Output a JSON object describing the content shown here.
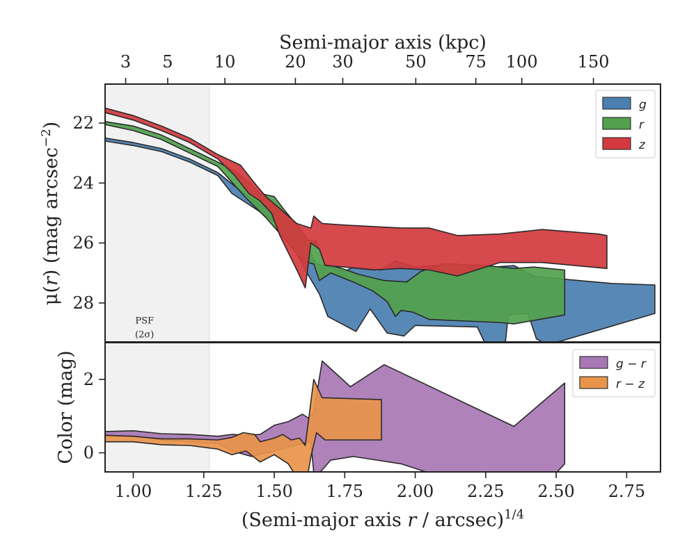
{
  "chart_data": [
    {
      "type": "area",
      "panel": "surface-brightness",
      "top_axis": {
        "label": "Semi-major axis (kpc)",
        "ticks": [
          3,
          5,
          10,
          20,
          30,
          50,
          75,
          100,
          150
        ],
        "tick_positions_x": [
          0.973,
          1.122,
          1.325,
          1.575,
          1.743,
          2.002,
          2.215,
          2.378,
          2.632
        ]
      },
      "xlabel_prefix": "(Semi-major axis ",
      "xlabel_var": "r",
      "xlabel_suffix": " / arcsec)",
      "xlabel_exp": "1/4",
      "ylabel": "μ(r) (mag arcsec⁻²)",
      "ylabel_parts": {
        "mu": "μ",
        "r": "r",
        "rest": ") (mag arcsec",
        "exp": "−2",
        "close": ")"
      },
      "xlim": [
        0.9,
        2.87
      ],
      "ylim": [
        29.3,
        20.7
      ],
      "yticks": [
        22,
        24,
        26,
        28
      ],
      "psf_region": {
        "x0": 0.9,
        "x1": 1.27,
        "label_1": "PSF",
        "label_2": "(2σ)"
      },
      "legend": {
        "position": "top-right"
      },
      "series": [
        {
          "name": "g",
          "color": "#4a7fb0",
          "polygon": [
            [
              0.9,
              22.5
            ],
            [
              1.0,
              22.65
            ],
            [
              1.1,
              22.85
            ],
            [
              1.2,
              23.2
            ],
            [
              1.3,
              23.65
            ],
            [
              1.36,
              24.1
            ],
            [
              1.43,
              24.6
            ],
            [
              1.46,
              24.75
            ],
            [
              1.5,
              24.8
            ],
            [
              1.55,
              25.4
            ],
            [
              1.6,
              25.85
            ],
            [
              1.65,
              26.7
            ],
            [
              1.7,
              26.8
            ],
            [
              1.75,
              26.95
            ],
            [
              1.78,
              26.8
            ],
            [
              1.88,
              26.9
            ],
            [
              1.93,
              26.6
            ],
            [
              2.0,
              26.8
            ],
            [
              2.15,
              26.7
            ],
            [
              2.22,
              26.85
            ],
            [
              2.28,
              26.8
            ],
            [
              2.35,
              26.75
            ],
            [
              2.42,
              27.1
            ],
            [
              2.52,
              27.2
            ],
            [
              2.7,
              27.35
            ],
            [
              2.85,
              27.4
            ],
            [
              2.85,
              28.35
            ],
            [
              2.47,
              29.4
            ],
            [
              2.43,
              29.2
            ],
            [
              2.4,
              28.35
            ],
            [
              2.33,
              28.4
            ],
            [
              2.32,
              29.3
            ],
            [
              2.28,
              29.35
            ],
            [
              2.25,
              29.4
            ],
            [
              2.22,
              28.8
            ],
            [
              2.0,
              28.75
            ],
            [
              1.96,
              29.1
            ],
            [
              1.9,
              29.0
            ],
            [
              1.84,
              28.2
            ],
            [
              1.79,
              28.95
            ],
            [
              1.69,
              28.45
            ],
            [
              1.66,
              27.7
            ],
            [
              1.61,
              26.9
            ],
            [
              1.56,
              26.0
            ],
            [
              1.5,
              25.3
            ],
            [
              1.44,
              24.9
            ],
            [
              1.35,
              24.35
            ],
            [
              1.3,
              23.75
            ],
            [
              1.2,
              23.3
            ],
            [
              1.1,
              22.95
            ],
            [
              1.0,
              22.75
            ],
            [
              0.9,
              22.6
            ]
          ]
        },
        {
          "name": "r",
          "color": "#52a14e",
          "polygon": [
            [
              0.9,
              21.95
            ],
            [
              1.0,
              22.1
            ],
            [
              1.1,
              22.4
            ],
            [
              1.2,
              22.85
            ],
            [
              1.3,
              23.3
            ],
            [
              1.36,
              23.6
            ],
            [
              1.42,
              24.05
            ],
            [
              1.45,
              24.35
            ],
            [
              1.5,
              24.45
            ],
            [
              1.54,
              24.95
            ],
            [
              1.58,
              25.4
            ],
            [
              1.62,
              25.9
            ],
            [
              1.65,
              25.95
            ],
            [
              1.68,
              26.7
            ],
            [
              1.74,
              26.85
            ],
            [
              1.8,
              27.05
            ],
            [
              1.89,
              27.25
            ],
            [
              1.97,
              27.3
            ],
            [
              2.02,
              26.95
            ],
            [
              2.1,
              26.7
            ],
            [
              2.25,
              26.75
            ],
            [
              2.35,
              26.85
            ],
            [
              2.42,
              26.8
            ],
            [
              2.53,
              26.9
            ],
            [
              2.53,
              28.4
            ],
            [
              2.35,
              28.7
            ],
            [
              2.3,
              28.65
            ],
            [
              2.05,
              28.55
            ],
            [
              1.99,
              28.3
            ],
            [
              1.95,
              28.25
            ],
            [
              1.93,
              28.45
            ],
            [
              1.9,
              27.95
            ],
            [
              1.85,
              27.6
            ],
            [
              1.78,
              27.3
            ],
            [
              1.7,
              27.0
            ],
            [
              1.66,
              27.25
            ],
            [
              1.64,
              26.7
            ],
            [
              1.6,
              26.6
            ],
            [
              1.54,
              25.9
            ],
            [
              1.47,
              25.15
            ],
            [
              1.4,
              24.5
            ],
            [
              1.3,
              23.45
            ],
            [
              1.2,
              23.0
            ],
            [
              1.1,
              22.55
            ],
            [
              1.0,
              22.25
            ],
            [
              0.9,
              22.05
            ]
          ]
        },
        {
          "name": "z",
          "color": "#d3393e",
          "polygon": [
            [
              0.9,
              21.5
            ],
            [
              1.0,
              21.75
            ],
            [
              1.1,
              22.1
            ],
            [
              1.2,
              22.5
            ],
            [
              1.3,
              23.05
            ],
            [
              1.38,
              23.4
            ],
            [
              1.43,
              24.0
            ],
            [
              1.47,
              24.45
            ],
            [
              1.52,
              24.85
            ],
            [
              1.58,
              25.35
            ],
            [
              1.63,
              25.5
            ],
            [
              1.64,
              25.1
            ],
            [
              1.67,
              25.35
            ],
            [
              1.75,
              25.4
            ],
            [
              1.85,
              25.45
            ],
            [
              1.95,
              25.5
            ],
            [
              2.05,
              25.5
            ],
            [
              2.15,
              25.75
            ],
            [
              2.3,
              25.7
            ],
            [
              2.45,
              25.55
            ],
            [
              2.65,
              25.7
            ],
            [
              2.68,
              25.75
            ],
            [
              2.68,
              26.85
            ],
            [
              2.45,
              26.65
            ],
            [
              2.3,
              26.65
            ],
            [
              2.15,
              27.1
            ],
            [
              2.05,
              26.9
            ],
            [
              1.95,
              26.85
            ],
            [
              1.85,
              26.9
            ],
            [
              1.75,
              26.8
            ],
            [
              1.68,
              26.75
            ],
            [
              1.66,
              26.2
            ],
            [
              1.63,
              26.0
            ],
            [
              1.61,
              27.5
            ],
            [
              1.58,
              26.9
            ],
            [
              1.52,
              25.75
            ],
            [
              1.49,
              25.0
            ],
            [
              1.45,
              24.6
            ],
            [
              1.41,
              24.35
            ],
            [
              1.36,
              23.75
            ],
            [
              1.3,
              23.2
            ],
            [
              1.2,
              22.65
            ],
            [
              1.1,
              22.25
            ],
            [
              1.0,
              21.9
            ],
            [
              0.9,
              21.65
            ]
          ]
        }
      ]
    },
    {
      "type": "area",
      "panel": "color",
      "xlabel": "(Semi-major axis r / arcsec)^1/4",
      "ylabel": "Color (mag)",
      "xlim": [
        0.9,
        2.87
      ],
      "ylim": [
        -0.52,
        3.0
      ],
      "xticks": [
        "1.00",
        "1.25",
        "1.50",
        "1.75",
        "2.00",
        "2.25",
        "2.50",
        "2.75"
      ],
      "xtick_values": [
        1.0,
        1.25,
        1.5,
        1.75,
        2.0,
        2.25,
        2.5,
        2.75
      ],
      "yticks": [
        0,
        2
      ],
      "psf_region": {
        "x0": 0.9,
        "x1": 1.27
      },
      "legend": {
        "position": "top-right"
      },
      "series": [
        {
          "name": "g − r",
          "label_a": "g",
          "label_b": "r",
          "color": "#a877b4",
          "polygon": [
            [
              0.9,
              0.58
            ],
            [
              1.0,
              0.6
            ],
            [
              1.1,
              0.52
            ],
            [
              1.2,
              0.5
            ],
            [
              1.3,
              0.45
            ],
            [
              1.35,
              0.5
            ],
            [
              1.4,
              0.48
            ],
            [
              1.45,
              0.5
            ],
            [
              1.5,
              0.75
            ],
            [
              1.55,
              0.85
            ],
            [
              1.6,
              1.05
            ],
            [
              1.62,
              0.95
            ],
            [
              1.64,
              1.1
            ],
            [
              1.67,
              2.5
            ],
            [
              1.77,
              1.8
            ],
            [
              1.89,
              2.4
            ],
            [
              2.35,
              0.72
            ],
            [
              2.53,
              1.9
            ],
            [
              2.53,
              -0.3
            ],
            [
              2.5,
              -0.55
            ],
            [
              2.05,
              -0.55
            ],
            [
              1.95,
              -0.3
            ],
            [
              1.78,
              -0.1
            ],
            [
              1.7,
              -0.2
            ],
            [
              1.66,
              -0.55
            ],
            [
              1.64,
              -0.55
            ],
            [
              1.63,
              0.3
            ],
            [
              1.57,
              0.2
            ],
            [
              1.5,
              0.05
            ],
            [
              1.42,
              -0.1
            ],
            [
              1.35,
              0.05
            ],
            [
              1.3,
              0.25
            ],
            [
              1.2,
              0.3
            ],
            [
              1.1,
              0.35
            ],
            [
              1.0,
              0.45
            ],
            [
              0.9,
              0.45
            ]
          ]
        },
        {
          "name": "r − z",
          "label_a": "r",
          "label_b": "z",
          "color": "#e8944a",
          "polygon": [
            [
              0.9,
              0.48
            ],
            [
              1.0,
              0.45
            ],
            [
              1.1,
              0.38
            ],
            [
              1.2,
              0.38
            ],
            [
              1.3,
              0.35
            ],
            [
              1.35,
              0.42
            ],
            [
              1.39,
              0.55
            ],
            [
              1.43,
              0.5
            ],
            [
              1.45,
              0.3
            ],
            [
              1.5,
              0.4
            ],
            [
              1.53,
              0.5
            ],
            [
              1.56,
              0.35
            ],
            [
              1.59,
              0.4
            ],
            [
              1.61,
              0.2
            ],
            [
              1.64,
              2.0
            ],
            [
              1.67,
              1.5
            ],
            [
              1.88,
              1.45
            ],
            [
              1.88,
              0.35
            ],
            [
              1.79,
              0.35
            ],
            [
              1.68,
              0.35
            ],
            [
              1.65,
              0.55
            ],
            [
              1.63,
              -0.1
            ],
            [
              1.62,
              -0.55
            ],
            [
              1.57,
              -0.55
            ],
            [
              1.55,
              -0.3
            ],
            [
              1.5,
              -0.05
            ],
            [
              1.45,
              -0.25
            ],
            [
              1.4,
              0.05
            ],
            [
              1.35,
              -0.05
            ],
            [
              1.3,
              0.1
            ],
            [
              1.2,
              0.2
            ],
            [
              1.1,
              0.22
            ],
            [
              1.0,
              0.3
            ],
            [
              0.9,
              0.3
            ]
          ]
        }
      ]
    }
  ]
}
